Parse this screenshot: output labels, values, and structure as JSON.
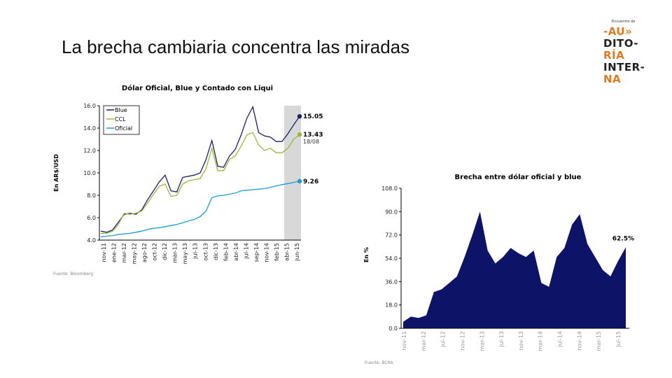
{
  "slide": {
    "title": "La brecha cambiaria concentra las miradas"
  },
  "logo": {
    "tagline": "Encuentro de",
    "lines": [
      "-AU»",
      "DITO-",
      "RÍA",
      "INTER-",
      "NA"
    ]
  },
  "colors": {
    "blue": "#1a1f6e",
    "ccl": "#9ab83a",
    "oficial": "#1f9bd7",
    "area": "#0d1366",
    "shade": "#d8d8d8"
  },
  "chart_data": [
    {
      "type": "line",
      "title": "Dólar Oficial, Blue y Contado con Liqui",
      "ylabel": "En AR$/USD",
      "xlabel": "",
      "ylim": [
        4.0,
        16.0
      ],
      "yticks": [
        "4.0",
        "6.0",
        "8.0",
        "10.0",
        "12.0",
        "14.0",
        "16.0"
      ],
      "xticks": [
        "nov-11",
        "ene-12",
        "mar-12",
        "may-12",
        "ago-12",
        "oct-12",
        "dic-12",
        "mar-13",
        "may-13",
        "jul-13",
        "oct-13",
        "dic-13",
        "feb-14",
        "abr-14",
        "jul-14",
        "sep-14",
        "nov-14",
        "feb-15",
        "abr-15",
        "jun-15"
      ],
      "legend": {
        "position": "top-left",
        "entries": [
          "Blue",
          "CCL",
          "Oficial"
        ]
      },
      "shaded_band": "may-15 to ago-15",
      "x": [
        "nov-11",
        "ene-12",
        "mar-12",
        "may-12",
        "jun-12",
        "ago-12",
        "oct-12",
        "dic-12",
        "feb-13",
        "mar-13",
        "abr-13",
        "may-13",
        "jun-13",
        "jul-13",
        "sep-13",
        "oct-13",
        "nov-13",
        "dic-13",
        "ene-14",
        "feb-14",
        "mar-14",
        "abr-14",
        "jun-14",
        "jul-14",
        "ago-14",
        "sep-14",
        "oct-14",
        "nov-14",
        "ene-15",
        "feb-15",
        "abr-15",
        "may-15",
        "jun-15",
        "jul-15",
        "ago-15"
      ],
      "series": [
        {
          "name": "Blue",
          "values": [
            4.8,
            4.7,
            4.9,
            5.6,
            6.3,
            6.4,
            6.3,
            6.7,
            7.6,
            8.4,
            9.2,
            9.8,
            8.4,
            8.3,
            9.6,
            9.7,
            9.8,
            10.0,
            11.2,
            12.9,
            10.6,
            10.5,
            11.5,
            12.1,
            13.4,
            14.9,
            15.9,
            13.6,
            13.3,
            13.2,
            12.8,
            12.8,
            13.5,
            14.3,
            15.05
          ]
        },
        {
          "name": "CCL",
          "values": [
            4.6,
            4.6,
            4.8,
            5.4,
            6.4,
            6.3,
            6.4,
            6.6,
            7.3,
            8.1,
            8.8,
            9.0,
            7.9,
            8.0,
            9.0,
            9.3,
            9.4,
            9.5,
            10.4,
            12.2,
            10.2,
            10.2,
            11.2,
            11.5,
            12.4,
            13.4,
            13.6,
            12.5,
            12.0,
            12.2,
            11.8,
            11.8,
            12.2,
            13.0,
            13.43
          ]
        },
        {
          "name": "Oficial",
          "values": [
            4.3,
            4.35,
            4.4,
            4.5,
            4.55,
            4.6,
            4.7,
            4.8,
            4.95,
            5.05,
            5.1,
            5.2,
            5.3,
            5.4,
            5.55,
            5.7,
            5.85,
            6.1,
            6.6,
            7.8,
            7.95,
            8.0,
            8.1,
            8.2,
            8.4,
            8.45,
            8.5,
            8.55,
            8.6,
            8.7,
            8.85,
            8.95,
            9.05,
            9.15,
            9.26
          ]
        }
      ],
      "end_labels": [
        {
          "series": "Blue",
          "value": "15.05"
        },
        {
          "series": "CCL",
          "value": "13.43"
        },
        {
          "series": "Oficial",
          "value": "9.26"
        }
      ],
      "date_label": "18/08",
      "source": "Fuente: Bloomberg"
    },
    {
      "type": "area",
      "title": "Brecha entre dólar oficial y blue",
      "ylabel": "En %",
      "xlabel": "",
      "ylim": [
        0.0,
        108.0
      ],
      "yticks": [
        "0.0",
        "18.0",
        "36.0",
        "54.0",
        "72.0",
        "90.0",
        "108.0"
      ],
      "xticks": [
        "nov-11",
        "mar-12",
        "jul-12",
        "nov-12",
        "mar-13",
        "jul-13",
        "nov-13",
        "mar-14",
        "jul-14",
        "nov-14",
        "mar-15",
        "jul-15"
      ],
      "x": [
        "nov-11",
        "ene-12",
        "mar-12",
        "may-12",
        "jun-12",
        "ago-12",
        "oct-12",
        "dic-12",
        "feb-13",
        "abr-13",
        "may-13",
        "jun-13",
        "jul-13",
        "sep-13",
        "oct-13",
        "dic-13",
        "ene-14",
        "feb-14",
        "abr-14",
        "jun-14",
        "ago-14",
        "sep-14",
        "oct-14",
        "nov-14",
        "dic-14",
        "feb-15",
        "abr-15",
        "jun-15",
        "jul-15",
        "ago-15"
      ],
      "series": [
        {
          "name": "Brecha",
          "values": [
            5,
            9,
            8,
            10,
            28,
            30,
            35,
            40,
            55,
            72,
            90,
            60,
            50,
            55,
            62,
            58,
            55,
            60,
            35,
            32,
            55,
            62,
            80,
            88,
            65,
            55,
            45,
            40,
            52,
            62.5
          ]
        }
      ],
      "end_label": "62.5%",
      "source": "Fuente: BCRA"
    }
  ]
}
